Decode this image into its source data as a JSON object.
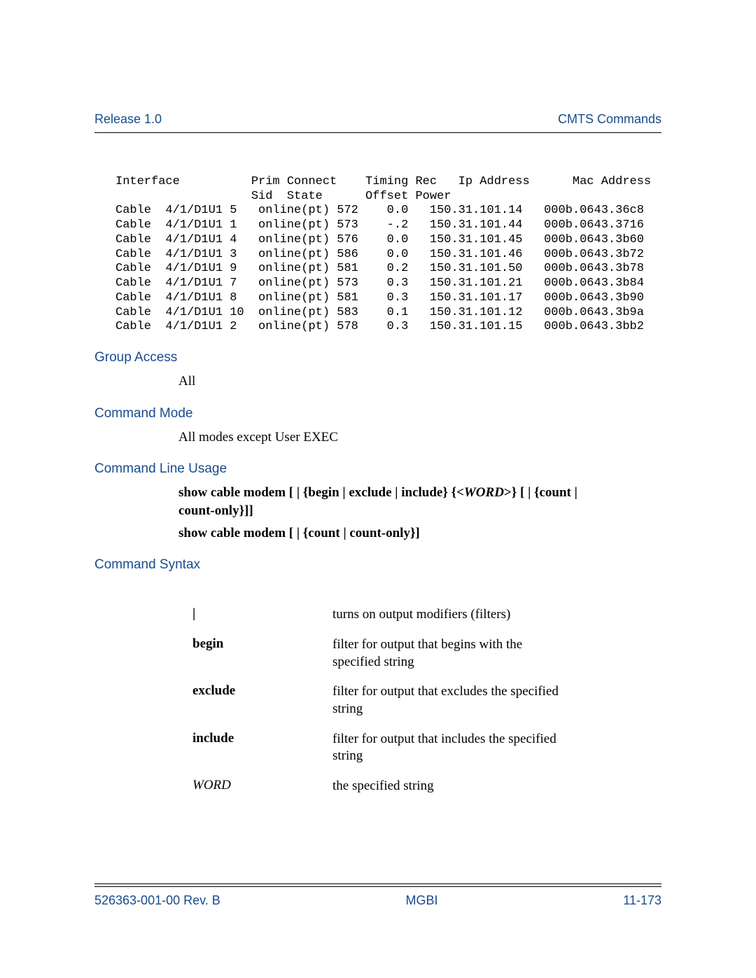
{
  "header": {
    "left": "Release 1.0",
    "right": "CMTS Commands"
  },
  "terminal": {
    "header_line1": "Interface          Prim Connect    Timing Rec   Ip Address      Mac Address",
    "header_line2": "                   Sid  State      Offset Power",
    "rows": [
      {
        "iface": "Cable  4/1/D1U1",
        "sid": "5",
        "state": "online(pt)",
        "timing": "572",
        "power": "0.0",
        "ip": "150.31.101.14",
        "mac": "000b.0643.36c8"
      },
      {
        "iface": "Cable  4/1/D1U1",
        "sid": "1",
        "state": "online(pt)",
        "timing": "573",
        "power": "-.2",
        "ip": "150.31.101.44",
        "mac": "000b.0643.3716"
      },
      {
        "iface": "Cable  4/1/D1U1",
        "sid": "4",
        "state": "online(pt)",
        "timing": "576",
        "power": "0.0",
        "ip": "150.31.101.45",
        "mac": "000b.0643.3b60"
      },
      {
        "iface": "Cable  4/1/D1U1",
        "sid": "3",
        "state": "online(pt)",
        "timing": "586",
        "power": "0.0",
        "ip": "150.31.101.46",
        "mac": "000b.0643.3b72"
      },
      {
        "iface": "Cable  4/1/D1U1",
        "sid": "9",
        "state": "online(pt)",
        "timing": "581",
        "power": "0.2",
        "ip": "150.31.101.50",
        "mac": "000b.0643.3b78"
      },
      {
        "iface": "Cable  4/1/D1U1",
        "sid": "7",
        "state": "online(pt)",
        "timing": "573",
        "power": "0.3",
        "ip": "150.31.101.21",
        "mac": "000b.0643.3b84"
      },
      {
        "iface": "Cable  4/1/D1U1",
        "sid": "8",
        "state": "online(pt)",
        "timing": "581",
        "power": "0.3",
        "ip": "150.31.101.17",
        "mac": "000b.0643.3b90"
      },
      {
        "iface": "Cable  4/1/D1U1",
        "sid": "10",
        "state": "online(pt)",
        "timing": "583",
        "power": "0.1",
        "ip": "150.31.101.12",
        "mac": "000b.0643.3b9a"
      },
      {
        "iface": "Cable  4/1/D1U1",
        "sid": "2",
        "state": "online(pt)",
        "timing": "578",
        "power": "0.3",
        "ip": "150.31.101.15",
        "mac": "000b.0643.3bb2"
      }
    ]
  },
  "sections": {
    "group_access": {
      "title": "Group Access",
      "body": "All"
    },
    "command_mode": {
      "title": "Command Mode",
      "body": "All modes except User EXEC"
    },
    "cmd_line_usage": {
      "title": "Command Line Usage",
      "line1_a": "show cable modem [ | {begin | exclude | include} {<",
      "line1_word": "WORD",
      "line1_b": ">} [ | {count | count-only}]]",
      "line2": "show cable modem [ | {count | count-only}]"
    },
    "command_syntax": {
      "title": "Command Syntax",
      "rows": [
        {
          "key": "|",
          "desc": "turns on output modifiers (filters)",
          "italic": false
        },
        {
          "key": "begin",
          "desc": "filter for output that begins with the specified string",
          "italic": false
        },
        {
          "key": "exclude",
          "desc": "filter for output that excludes the specified string",
          "italic": false
        },
        {
          "key": "include",
          "desc": "filter for output that includes the specified string",
          "italic": false
        },
        {
          "key": "WORD",
          "desc": "the specified string",
          "italic": true
        }
      ]
    }
  },
  "footer": {
    "left": "526363-001-00 Rev. B",
    "center": "MGBI",
    "right": "11-173"
  },
  "colors": {
    "blue": "#1a4b8c",
    "text": "#000000",
    "bg": "#ffffff"
  }
}
